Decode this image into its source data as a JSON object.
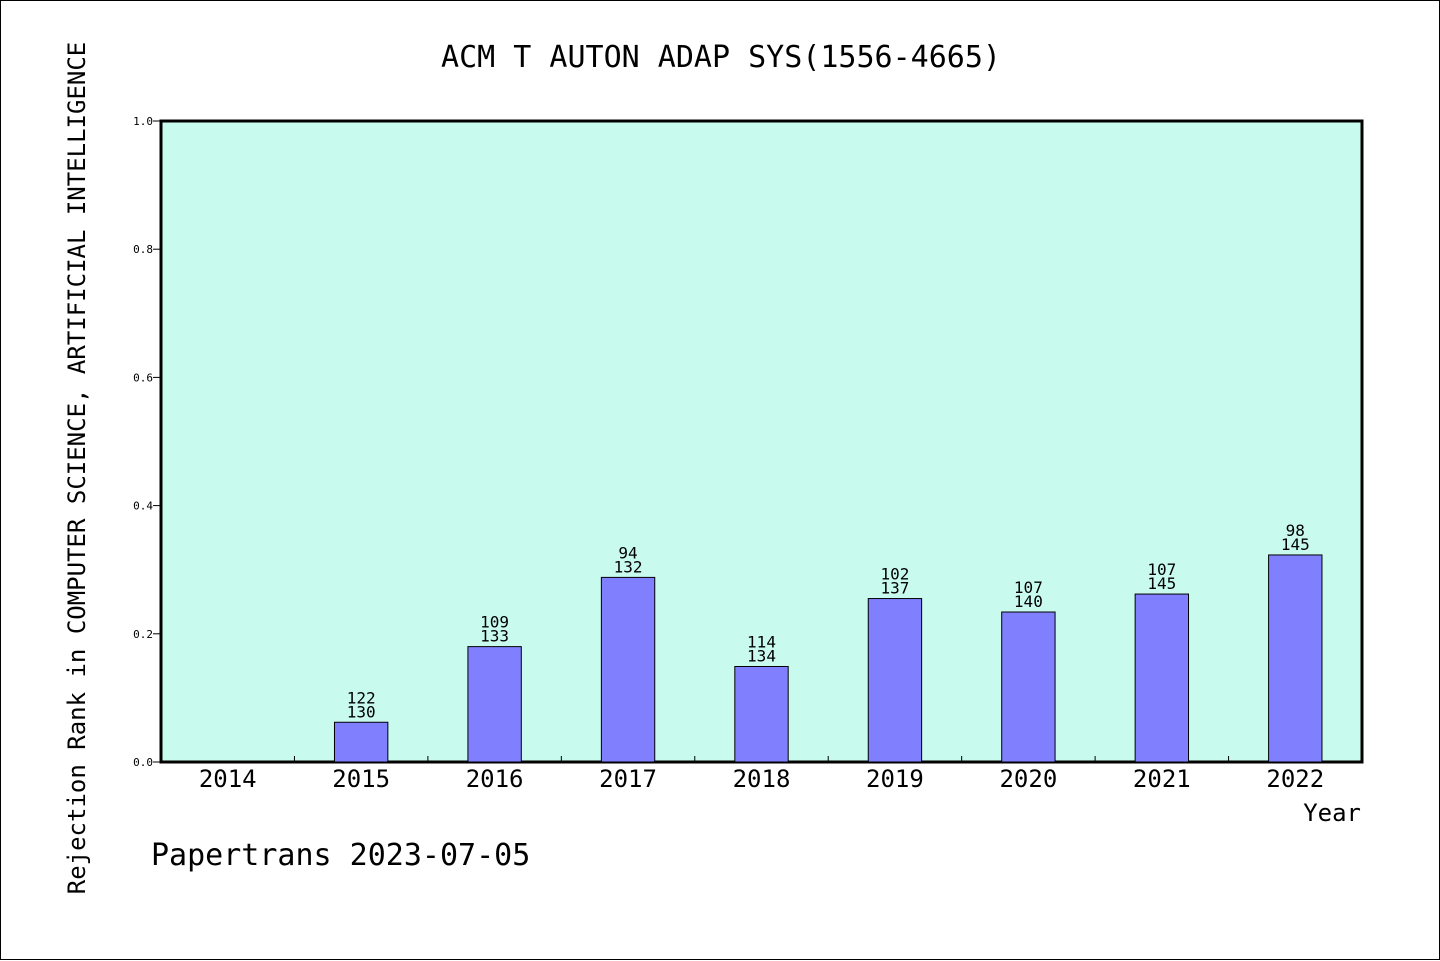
{
  "chart_data": {
    "type": "bar",
    "title": "ACM T AUTON ADAP SYS(1556-4665)",
    "xlabel": "Year",
    "ylabel": "Rejection Rank in COMPUTER SCIENCE, ARTIFICIAL INTELLIGENCE",
    "ylim": [
      0,
      1.0
    ],
    "yticks": [
      "0.0",
      "0.2",
      "0.4",
      "0.6",
      "0.8",
      "1.0"
    ],
    "categories": [
      "2014",
      "2015",
      "2016",
      "2017",
      "2018",
      "2019",
      "2020",
      "2021",
      "2022"
    ],
    "values": [
      null,
      0.062,
      0.18,
      0.288,
      0.149,
      0.255,
      0.234,
      0.262,
      0.323
    ],
    "rank_labels": [
      "",
      "122",
      "109",
      "94",
      "114",
      "102",
      "107",
      "107",
      "98"
    ],
    "total_labels": [
      "",
      "130",
      "133",
      "132",
      "134",
      "137",
      "140",
      "145",
      "145"
    ],
    "grid": false,
    "colors": {
      "plot_background": "#c8faee",
      "bar": "#8080ff",
      "bar_stroke": "#000000"
    }
  },
  "footer": "Papertrans 2023-07-05"
}
